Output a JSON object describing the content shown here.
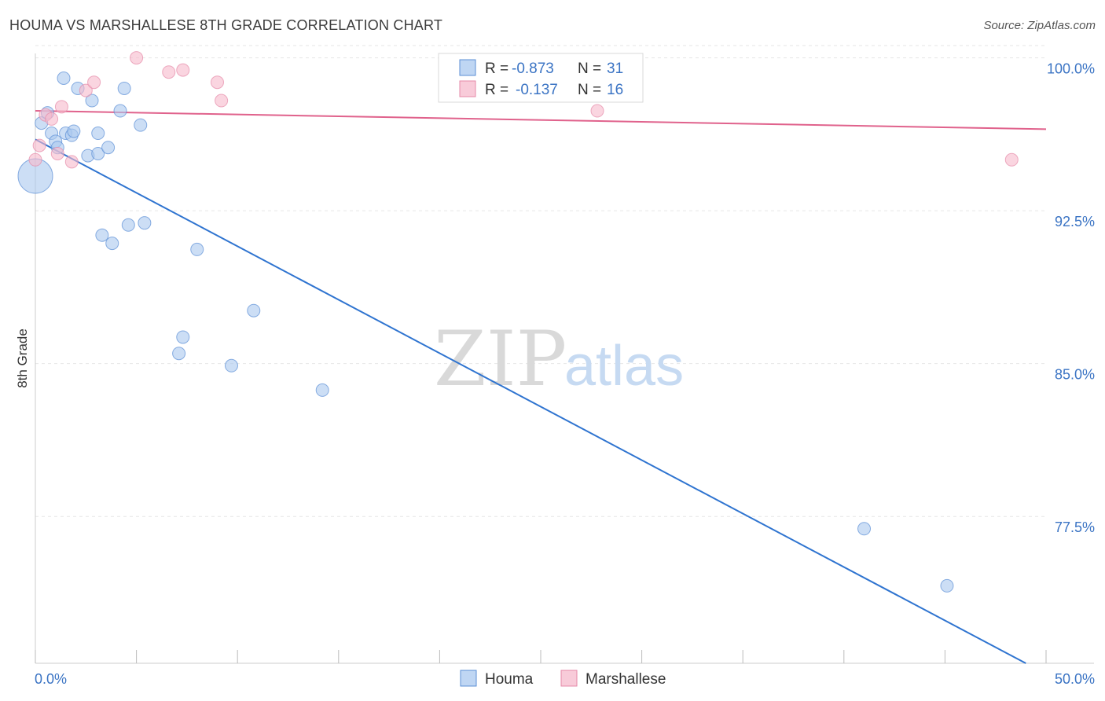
{
  "title": "HOUMA VS MARSHALLESE 8TH GRADE CORRELATION CHART",
  "source": "Source: ZipAtlas.com",
  "watermark": {
    "part1": "ZIP",
    "part2": "atlas"
  },
  "colors": {
    "houma_fill": "#aac8ef",
    "houma_stroke": "#5b8fd6",
    "houma_line": "#2f74d0",
    "marshallese_fill": "#f6b9cc",
    "marshallese_stroke": "#e68aa8",
    "marshallese_line": "#e0628c",
    "grid": "#e6e6e6",
    "axis_label": "#3b74c4"
  },
  "legend": {
    "rows": [
      {
        "r_label": "R =",
        "r_value": "-0.873",
        "n_label": "N =",
        "n_value": "31"
      },
      {
        "r_label": "R =",
        "r_value": "-0.137",
        "n_label": "N =",
        "n_value": "16"
      }
    ]
  },
  "chart_data": {
    "type": "scatter",
    "title": "HOUMA VS MARSHALLESE 8TH GRADE CORRELATION CHART",
    "xlabel": "",
    "ylabel": "8th Grade",
    "xlim": [
      0,
      50
    ],
    "ylim": [
      70.3,
      100.6
    ],
    "x_tick_labels": [
      "0.0%",
      "50.0%"
    ],
    "y_ticks": [
      77.5,
      85.0,
      92.5,
      100.0
    ],
    "y_tick_labels": [
      "77.5%",
      "85.0%",
      "92.5%",
      "100.0%"
    ],
    "grid": true,
    "legend_position": "top-center",
    "series": [
      {
        "name": "Houma",
        "r": -0.873,
        "n": 31,
        "points": [
          {
            "x": 0.0,
            "y": 94.2,
            "s": 3
          },
          {
            "x": 0.3,
            "y": 96.8,
            "s": 1
          },
          {
            "x": 0.6,
            "y": 97.3,
            "s": 1
          },
          {
            "x": 0.8,
            "y": 96.3,
            "s": 1
          },
          {
            "x": 1.0,
            "y": 95.9,
            "s": 1
          },
          {
            "x": 1.1,
            "y": 95.6,
            "s": 1
          },
          {
            "x": 1.4,
            "y": 99.0,
            "s": 1
          },
          {
            "x": 1.5,
            "y": 96.3,
            "s": 1
          },
          {
            "x": 1.8,
            "y": 96.2,
            "s": 1
          },
          {
            "x": 1.9,
            "y": 96.4,
            "s": 1
          },
          {
            "x": 2.1,
            "y": 98.5,
            "s": 1
          },
          {
            "x": 2.6,
            "y": 95.2,
            "s": 1
          },
          {
            "x": 2.8,
            "y": 97.9,
            "s": 1
          },
          {
            "x": 3.1,
            "y": 95.3,
            "s": 1
          },
          {
            "x": 3.1,
            "y": 96.3,
            "s": 1
          },
          {
            "x": 3.3,
            "y": 91.3,
            "s": 1
          },
          {
            "x": 3.6,
            "y": 95.6,
            "s": 1
          },
          {
            "x": 3.8,
            "y": 90.9,
            "s": 1
          },
          {
            "x": 4.2,
            "y": 97.4,
            "s": 1
          },
          {
            "x": 4.4,
            "y": 98.5,
            "s": 1
          },
          {
            "x": 4.6,
            "y": 91.8,
            "s": 1
          },
          {
            "x": 5.2,
            "y": 96.7,
            "s": 1
          },
          {
            "x": 5.4,
            "y": 91.9,
            "s": 1
          },
          {
            "x": 7.1,
            "y": 85.5,
            "s": 1
          },
          {
            "x": 7.3,
            "y": 86.3,
            "s": 1
          },
          {
            "x": 8.0,
            "y": 90.6,
            "s": 1
          },
          {
            "x": 9.7,
            "y": 84.9,
            "s": 1
          },
          {
            "x": 10.8,
            "y": 87.6,
            "s": 1
          },
          {
            "x": 14.2,
            "y": 83.7,
            "s": 1
          },
          {
            "x": 41.0,
            "y": 76.9,
            "s": 1
          },
          {
            "x": 45.1,
            "y": 74.1,
            "s": 1
          }
        ],
        "trend": {
          "x": [
            0,
            49.0
          ],
          "y": [
            96.0,
            70.3
          ]
        }
      },
      {
        "name": "Marshallese",
        "r": -0.137,
        "n": 16,
        "points": [
          {
            "x": 0.0,
            "y": 95.0,
            "s": 1
          },
          {
            "x": 0.2,
            "y": 95.7,
            "s": 1
          },
          {
            "x": 0.5,
            "y": 97.2,
            "s": 1
          },
          {
            "x": 0.8,
            "y": 97.0,
            "s": 1
          },
          {
            "x": 1.1,
            "y": 95.3,
            "s": 1
          },
          {
            "x": 1.3,
            "y": 97.6,
            "s": 1
          },
          {
            "x": 1.8,
            "y": 94.9,
            "s": 1
          },
          {
            "x": 2.5,
            "y": 98.4,
            "s": 1
          },
          {
            "x": 2.9,
            "y": 98.8,
            "s": 1
          },
          {
            "x": 5.0,
            "y": 100.0,
            "s": 1
          },
          {
            "x": 6.6,
            "y": 99.3,
            "s": 1
          },
          {
            "x": 7.3,
            "y": 99.4,
            "s": 1
          },
          {
            "x": 9.0,
            "y": 98.8,
            "s": 1
          },
          {
            "x": 9.2,
            "y": 97.9,
            "s": 1
          },
          {
            "x": 27.8,
            "y": 97.4,
            "s": 1
          },
          {
            "x": 48.3,
            "y": 95.0,
            "s": 1
          }
        ],
        "trend": {
          "x": [
            0,
            50.0
          ],
          "y": [
            97.4,
            96.5
          ]
        }
      }
    ]
  }
}
